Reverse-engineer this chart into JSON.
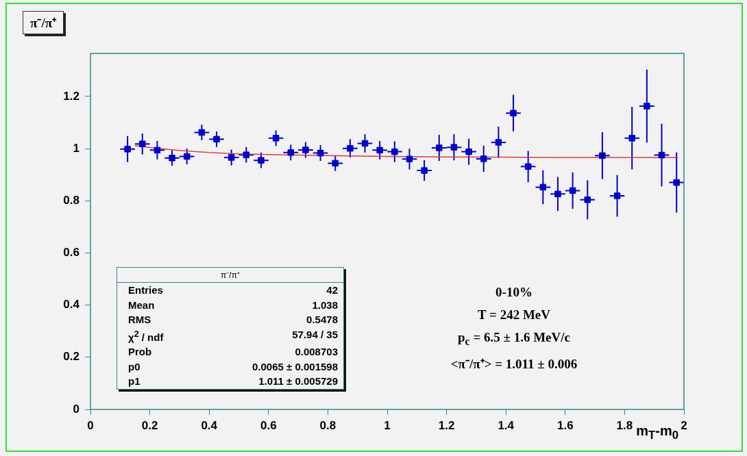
{
  "chart_data": {
    "type": "scatter",
    "title": "π⁻/π⁺",
    "xlabel": "m$_{T}$-m$_{0}$",
    "xlim": [
      0,
      2
    ],
    "xticks": [
      0,
      0.2,
      0.4,
      0.6,
      0.8,
      1,
      1.2,
      1.4,
      1.6,
      1.8,
      2
    ],
    "ylim": [
      0,
      1.365
    ],
    "yticks": [
      0,
      0.2,
      0.4,
      0.6,
      0.8,
      1,
      1.2
    ],
    "grid": false,
    "legend": false,
    "series": [
      {
        "marker": "square",
        "color": "#0000cc",
        "x": [
          0.125,
          0.175,
          0.225,
          0.275,
          0.325,
          0.375,
          0.425,
          0.475,
          0.525,
          0.575,
          0.625,
          0.675,
          0.725,
          0.775,
          0.825,
          0.875,
          0.925,
          0.975,
          1.025,
          1.075,
          1.125,
          1.175,
          1.225,
          1.275,
          1.325,
          1.375,
          1.425,
          1.475,
          1.525,
          1.575,
          1.625,
          1.675,
          1.725,
          1.775,
          1.825,
          1.875,
          1.925,
          1.975
        ],
        "values": [
          0.998,
          1.018,
          0.994,
          0.964,
          0.97,
          1.062,
          1.036,
          0.966,
          0.976,
          0.955,
          1.04,
          0.985,
          0.995,
          0.983,
          0.944,
          1.001,
          1.02,
          0.994,
          0.988,
          0.96,
          0.916,
          1.003,
          1.005,
          0.988,
          0.961,
          1.024,
          1.136,
          0.931,
          0.852,
          0.826,
          0.839,
          0.804,
          0.973,
          0.819,
          1.04,
          1.163,
          0.975,
          0.87
        ],
        "errors": [
          0.05,
          0.04,
          0.035,
          0.03,
          0.03,
          0.03,
          0.03,
          0.03,
          0.03,
          0.03,
          0.03,
          0.03,
          0.03,
          0.03,
          0.03,
          0.035,
          0.035,
          0.035,
          0.04,
          0.04,
          0.04,
          0.05,
          0.05,
          0.05,
          0.05,
          0.06,
          0.07,
          0.06,
          0.065,
          0.065,
          0.07,
          0.075,
          0.09,
          0.08,
          0.12,
          0.14,
          0.12,
          0.115
        ],
        "xerrors": [
          0.025,
          0.025,
          0.025,
          0.025,
          0.025,
          0.025,
          0.025,
          0.025,
          0.025,
          0.025,
          0.025,
          0.025,
          0.025,
          0.025,
          0.025,
          0.025,
          0.025,
          0.025,
          0.025,
          0.025,
          0.025,
          0.025,
          0.025,
          0.025,
          0.025,
          0.025,
          0.025,
          0.025,
          0.025,
          0.025,
          0.025,
          0.025,
          0.025,
          0.025,
          0.025,
          0.025,
          0.025,
          0.025
        ],
        "line_style": "solid"
      },
      {
        "type": "line",
        "marker": "none",
        "color": "#e03c3c",
        "x": [
          0.15,
          0.2,
          0.3,
          0.4,
          0.5,
          0.6,
          0.8,
          1,
          1.2,
          1.4,
          1.6,
          1.98
        ],
        "values": [
          1.012,
          1.004,
          0.993,
          0.985,
          0.98,
          0.977,
          0.973,
          0.97,
          0.968,
          0.967,
          0.966,
          0.966
        ]
      }
    ],
    "annotations": [
      "π⁻/π⁺",
      "Entries\t42",
      "Mean\t1.038",
      "RMS\t0.5478",
      "χ$^{2}$ / ndf\t57.94 / 35",
      "Prob\t0.008703",
      "p0\t0.0065 ± 0.001598",
      "p1\t1.011 ± 0.005729",
      "0-10%",
      "T = 242 MeV",
      "p$_{c}$ = 6.5 ± 1.6 MeV/c",
      "<π⁻/π⁺> = 1.011 ± 0.006"
    ]
  }
}
